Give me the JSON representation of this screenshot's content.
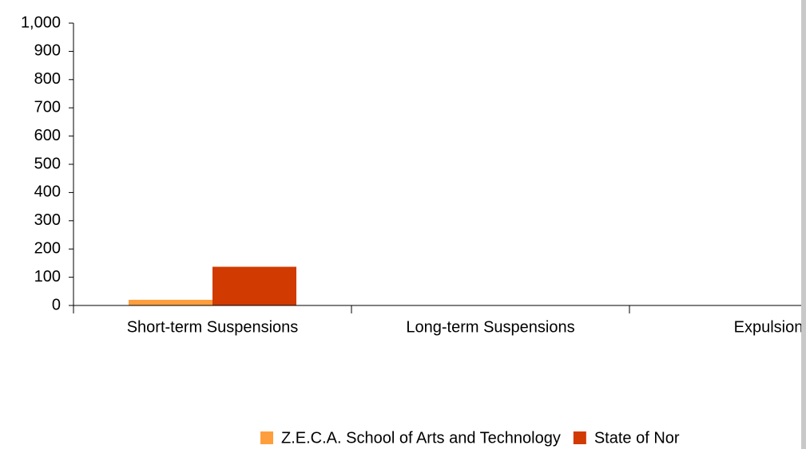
{
  "chart_data": {
    "type": "bar",
    "categories": [
      "Short-term Suspensions",
      "Long-term Suspensions",
      "Expulsion"
    ],
    "series": [
      {
        "name": "Z.E.C.A. School of Arts and Technology",
        "color": "#ff9e3d",
        "values": [
          20,
          0,
          0
        ]
      },
      {
        "name": "State of Nor",
        "color": "#d13a00",
        "values": [
          137,
          0,
          0
        ]
      }
    ],
    "ylim": [
      0,
      1000
    ],
    "yticks": [
      0,
      100,
      200,
      300,
      400,
      500,
      600,
      700,
      800,
      900,
      {
        "value": 1000,
        "label": "1,000"
      }
    ],
    "legend": "bottom"
  }
}
